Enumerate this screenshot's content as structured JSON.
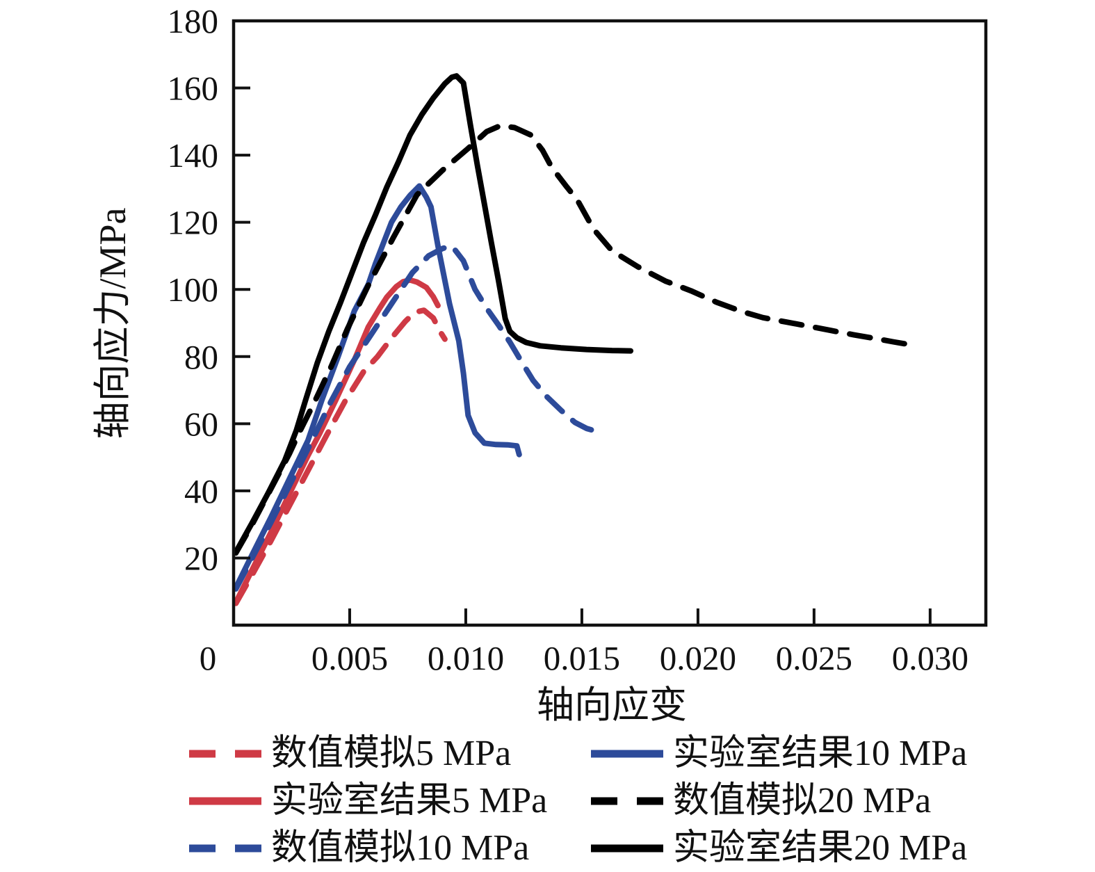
{
  "chart_data": {
    "type": "line",
    "title": "",
    "xlabel": "轴向应变",
    "ylabel": "轴向应力/MPa",
    "xlim": [
      0,
      0.0324
    ],
    "ylim": [
      0,
      180
    ],
    "grid": false,
    "legend_position": "bottom",
    "x_ticks": [
      {
        "value": 0,
        "label": "0"
      },
      {
        "value": 0.005,
        "label": "0.005"
      },
      {
        "value": 0.01,
        "label": "0.010"
      },
      {
        "value": 0.015,
        "label": "0.015"
      },
      {
        "value": 0.02,
        "label": "0.020"
      },
      {
        "value": 0.025,
        "label": "0.025"
      },
      {
        "value": 0.03,
        "label": "0.030"
      }
    ],
    "y_ticks": [
      {
        "value": 20,
        "label": "20"
      },
      {
        "value": 40,
        "label": "40"
      },
      {
        "value": 60,
        "label": "60"
      },
      {
        "value": 80,
        "label": "80"
      },
      {
        "value": 100,
        "label": "100"
      },
      {
        "value": 120,
        "label": "120"
      },
      {
        "value": 140,
        "label": "140"
      },
      {
        "value": 160,
        "label": "160"
      },
      {
        "value": 180,
        "label": "180"
      }
    ],
    "series": [
      {
        "name": "数值模拟5 MPa",
        "color": "#cf3a45",
        "style": "dashed",
        "points": [
          [
            0.0001,
            6.5
          ],
          [
            0.0008,
            15
          ],
          [
            0.0016,
            25
          ],
          [
            0.0024,
            35.5
          ],
          [
            0.0032,
            46
          ],
          [
            0.004,
            56.5
          ],
          [
            0.0048,
            66.7
          ],
          [
            0.0056,
            75.5
          ],
          [
            0.0062,
            80
          ],
          [
            0.0068,
            85.5
          ],
          [
            0.0074,
            90.5
          ],
          [
            0.0078,
            93.2
          ],
          [
            0.0082,
            93.8
          ],
          [
            0.0086,
            91.5
          ],
          [
            0.0089,
            87.4
          ],
          [
            0.0091,
            85.2
          ]
        ]
      },
      {
        "name": "实验室结果5 MPa",
        "color": "#cf3a45",
        "style": "solid",
        "points": [
          [
            0.0001,
            6.8
          ],
          [
            0.0008,
            16.5
          ],
          [
            0.0016,
            27.5
          ],
          [
            0.0024,
            39
          ],
          [
            0.0032,
            50.5
          ],
          [
            0.0037,
            57
          ],
          [
            0.0044,
            67
          ],
          [
            0.0052,
            79
          ],
          [
            0.0058,
            88.8
          ],
          [
            0.0063,
            94.5
          ],
          [
            0.0066,
            97.7
          ],
          [
            0.007,
            100.8
          ],
          [
            0.0073,
            102.3
          ],
          [
            0.0076,
            102.8
          ],
          [
            0.0079,
            102.2
          ],
          [
            0.0083,
            100.6
          ],
          [
            0.0086,
            97.8
          ],
          [
            0.0088,
            95.2
          ]
        ]
      },
      {
        "name": "数值模拟10 MPa",
        "color": "#2d4b9a",
        "style": "dashed",
        "points": [
          [
            0.0001,
            10.8
          ],
          [
            0.0008,
            20
          ],
          [
            0.0016,
            30.5
          ],
          [
            0.0024,
            41.5
          ],
          [
            0.0032,
            52.5
          ],
          [
            0.0042,
            66.7
          ],
          [
            0.005,
            77
          ],
          [
            0.0059,
            86.3
          ],
          [
            0.0068,
            95.7
          ],
          [
            0.0077,
            105
          ],
          [
            0.0084,
            110
          ],
          [
            0.009,
            112.2
          ],
          [
            0.0094,
            113
          ],
          [
            0.0099,
            108.5
          ],
          [
            0.0104,
            100
          ],
          [
            0.0109,
            94.4
          ],
          [
            0.0114,
            89.5
          ],
          [
            0.0119,
            84.3
          ],
          [
            0.0124,
            78.5
          ],
          [
            0.0129,
            72.9
          ],
          [
            0.0135,
            68
          ],
          [
            0.0141,
            64
          ],
          [
            0.0147,
            60.4
          ],
          [
            0.0152,
            58.6
          ],
          [
            0.0156,
            57.8
          ]
        ]
      },
      {
        "name": "实验室结果10 MPa",
        "color": "#2d4b9a",
        "style": "solid",
        "points": [
          [
            0.0001,
            11.2
          ],
          [
            0.0008,
            21
          ],
          [
            0.0016,
            32
          ],
          [
            0.0024,
            43.5
          ],
          [
            0.0032,
            55
          ],
          [
            0.0038,
            67
          ],
          [
            0.0045,
            80
          ],
          [
            0.0052,
            93.6
          ],
          [
            0.0058,
            101.5
          ],
          [
            0.0061,
            107.5
          ],
          [
            0.0068,
            120
          ],
          [
            0.0072,
            124.5
          ],
          [
            0.0076,
            128
          ],
          [
            0.008,
            130.8
          ],
          [
            0.0083,
            127.5
          ],
          [
            0.0085,
            124.6
          ],
          [
            0.0088,
            113
          ],
          [
            0.0093,
            95.7
          ],
          [
            0.0097,
            84.7
          ],
          [
            0.0099,
            75
          ],
          [
            0.0101,
            62.5
          ],
          [
            0.0104,
            57.3
          ],
          [
            0.0108,
            54.2
          ],
          [
            0.0113,
            53.8
          ],
          [
            0.0118,
            53.7
          ],
          [
            0.0122,
            53.4
          ],
          [
            0.0123,
            50.8
          ]
        ]
      },
      {
        "name": "数值模拟20 MPa",
        "color": "#000000",
        "style": "dashed",
        "points": [
          [
            0.0001,
            21.5
          ],
          [
            0.0008,
            30
          ],
          [
            0.0016,
            40.5
          ],
          [
            0.0024,
            51
          ],
          [
            0.0028,
            57
          ],
          [
            0.0035,
            66.7
          ],
          [
            0.0042,
            77
          ],
          [
            0.0049,
            88.2
          ],
          [
            0.0058,
            101.2
          ],
          [
            0.0069,
            115.7
          ],
          [
            0.0079,
            128.2
          ],
          [
            0.009,
            135.5
          ],
          [
            0.0101,
            142
          ],
          [
            0.0109,
            147
          ],
          [
            0.0115,
            148.8
          ],
          [
            0.0121,
            148.2
          ],
          [
            0.0128,
            146
          ],
          [
            0.0133,
            141.5
          ],
          [
            0.0137,
            136.4
          ],
          [
            0.0143,
            131
          ],
          [
            0.0148,
            126.7
          ],
          [
            0.0155,
            118
          ],
          [
            0.0163,
            111.5
          ],
          [
            0.0174,
            106.8
          ],
          [
            0.0186,
            102.5
          ],
          [
            0.0197,
            99.6
          ],
          [
            0.0208,
            96.2
          ],
          [
            0.0219,
            93.4
          ],
          [
            0.0228,
            91.6
          ],
          [
            0.0238,
            90.3
          ],
          [
            0.0248,
            89
          ],
          [
            0.0257,
            87.8
          ],
          [
            0.0267,
            86.5
          ],
          [
            0.0277,
            85.3
          ],
          [
            0.0284,
            84.4
          ],
          [
            0.029,
            83.7
          ]
        ]
      },
      {
        "name": "实验室结果20 MPa",
        "color": "#000000",
        "style": "solid",
        "points": [
          [
            0.0001,
            21.8
          ],
          [
            0.0008,
            30.5
          ],
          [
            0.0015,
            39.5
          ],
          [
            0.0022,
            49
          ],
          [
            0.0027,
            58
          ],
          [
            0.0031,
            67
          ],
          [
            0.0036,
            78
          ],
          [
            0.0041,
            87.5
          ],
          [
            0.0046,
            96
          ],
          [
            0.0051,
            105
          ],
          [
            0.0056,
            114
          ],
          [
            0.0061,
            122
          ],
          [
            0.0066,
            130.5
          ],
          [
            0.0071,
            138
          ],
          [
            0.0076,
            146
          ],
          [
            0.0081,
            152
          ],
          [
            0.0086,
            157
          ],
          [
            0.0091,
            161.3
          ],
          [
            0.0094,
            163.2
          ],
          [
            0.0096,
            163.6
          ],
          [
            0.0099,
            161.5
          ],
          [
            0.0102,
            149
          ],
          [
            0.0105,
            137
          ],
          [
            0.0108,
            125.5
          ],
          [
            0.0111,
            114
          ],
          [
            0.0114,
            103
          ],
          [
            0.0117,
            91.3
          ],
          [
            0.0119,
            87.5
          ],
          [
            0.0122,
            85.6
          ],
          [
            0.0126,
            84.2
          ],
          [
            0.0132,
            83.2
          ],
          [
            0.0141,
            82.6
          ],
          [
            0.0152,
            82.1
          ],
          [
            0.0163,
            81.8
          ],
          [
            0.0171,
            81.7
          ]
        ]
      }
    ],
    "legend": {
      "order": [
        0,
        3,
        1,
        4,
        2,
        5
      ]
    }
  }
}
